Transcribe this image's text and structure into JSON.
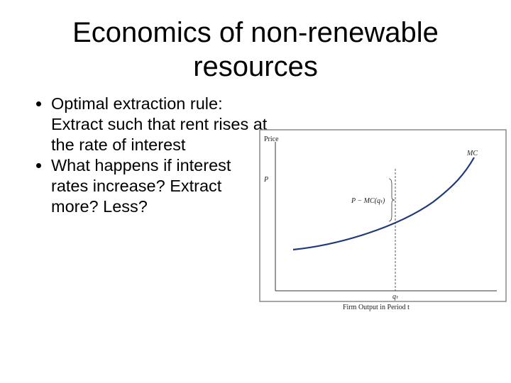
{
  "title": "Economics of non-renewable resources",
  "bullets": [
    "Optimal extraction rule: Extract such that rent rises at the rate of interest",
    "What happens if interest rates increase? Extract more? Less?"
  ],
  "diagram": {
    "y_axis_label": "Price",
    "x_axis_label": "Firm Output in Period t",
    "price_label": "P",
    "curve_label": "MC",
    "rent_label": "P − MC(qₜ)",
    "quantity_label": "qₜ"
  }
}
